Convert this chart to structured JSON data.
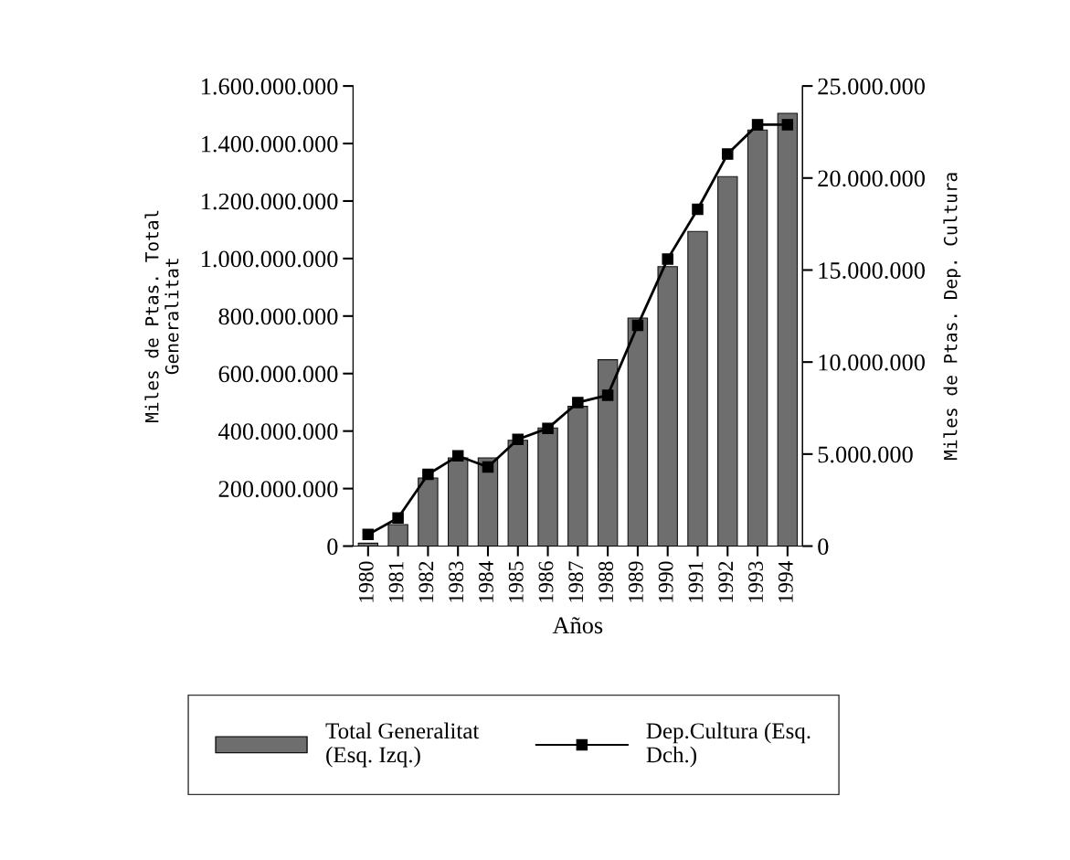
{
  "chart_data": {
    "type": "bar",
    "xlabel": "Años",
    "ylabel": "Miles de Ptas. Total\nGeneralitat",
    "y2label": "Miles de Ptas. Dep. Cultura",
    "categories": [
      "1980",
      "1981",
      "1982",
      "1983",
      "1984",
      "1985",
      "1986",
      "1987",
      "1988",
      "1989",
      "1990",
      "1991",
      "1992",
      "1993",
      "1994"
    ],
    "series": [
      {
        "name": "Total Generalitat\n(Esq. Izq.)",
        "color": "#6e6e6e",
        "values": [
          10000000,
          75000000,
          237000000,
          307000000,
          307000000,
          368000000,
          411000000,
          486000000,
          648000000,
          793000000,
          972000000,
          1094000000,
          1285000000,
          1447000000,
          1505000000
        ]
      },
      {
        "name": "Dep.Cultura (Esq.\nDch.)",
        "type": "line",
        "axis": "y2",
        "color": "#000000",
        "marker": "square",
        "values": [
          630000,
          1530000,
          3900000,
          4900000,
          4300000,
          5800000,
          6400000,
          7800000,
          8200000,
          12000000,
          15600000,
          18300000,
          21300000,
          22900000,
          22900000
        ]
      }
    ],
    "ylim": [
      0,
      1600000000
    ],
    "yticks": [
      {
        "value": 0,
        "label": "0"
      },
      {
        "value": 200000000,
        "label": "200.000.000"
      },
      {
        "value": 400000000,
        "label": "400.000.000"
      },
      {
        "value": 600000000,
        "label": "600.000.000"
      },
      {
        "value": 800000000,
        "label": "800.000.000"
      },
      {
        "value": 1000000000,
        "label": "1.000.000.000"
      },
      {
        "value": 1200000000,
        "label": "1.200.000.000"
      },
      {
        "value": 1400000000,
        "label": "1.400.000.000"
      },
      {
        "value": 1600000000,
        "label": "1.600.000.000"
      }
    ],
    "y2lim": [
      0,
      25000000
    ],
    "y2ticks": [
      {
        "value": 0,
        "label": "0"
      },
      {
        "value": 5000000,
        "label": "5.000.000"
      },
      {
        "value": 10000000,
        "label": "10.000.000"
      },
      {
        "value": 15000000,
        "label": "15.000.000"
      },
      {
        "value": 20000000,
        "label": "20.000.000"
      },
      {
        "value": 25000000,
        "label": "25.000.000"
      }
    ],
    "legend": "bottom",
    "grid": false
  }
}
